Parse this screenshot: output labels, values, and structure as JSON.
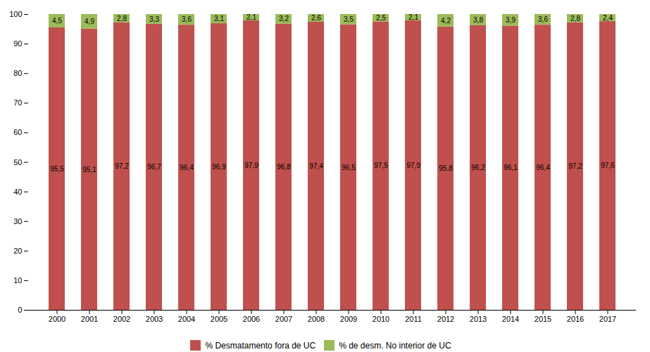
{
  "chart_data": {
    "type": "bar",
    "stacked": true,
    "categories": [
      "2000",
      "2001",
      "2002",
      "2003",
      "2004",
      "2005",
      "2006",
      "2007",
      "2008",
      "2009",
      "2010",
      "2011",
      "2012",
      "2013",
      "2014",
      "2015",
      "2016",
      "2017"
    ],
    "series": [
      {
        "name": "% Desmatamento fora de UC",
        "color": "#C0504D",
        "values": [
          95.5,
          95.1,
          97.2,
          96.7,
          96.4,
          96.9,
          97.9,
          96.8,
          97.4,
          96.5,
          97.5,
          97.9,
          95.8,
          96.2,
          96.1,
          96.4,
          97.2,
          97.6
        ],
        "value_labels": [
          "95,5",
          "95,1",
          "97,2",
          "96,7",
          "96,4",
          "96,9",
          "97,9",
          "96,8",
          "97,4",
          "96,5",
          "97,5",
          "97,9",
          "95,8",
          "96,2",
          "96,1",
          "96,4",
          "97,2",
          "97,6"
        ]
      },
      {
        "name": "% de desm. No interior de UC",
        "color": "#9BBB59",
        "values": [
          4.5,
          4.9,
          2.8,
          3.3,
          3.6,
          3.1,
          2.1,
          3.2,
          2.6,
          3.5,
          2.5,
          2.1,
          4.2,
          3.8,
          3.9,
          3.6,
          2.8,
          2.4
        ],
        "value_labels": [
          "4,5",
          "4,9",
          "2,8",
          "3,3",
          "3,6",
          "3,1",
          "2,1",
          "3,2",
          "2,6",
          "3,5",
          "2,5",
          "2,1",
          "4,2",
          "3,8",
          "3,9",
          "3,6",
          "2,8",
          "2,4"
        ]
      }
    ],
    "ylim": [
      0,
      100
    ],
    "yticks": [
      0,
      10,
      20,
      30,
      40,
      50,
      60,
      70,
      80,
      90,
      100
    ],
    "grid": false,
    "data_labels": true,
    "legend": "bottom"
  }
}
